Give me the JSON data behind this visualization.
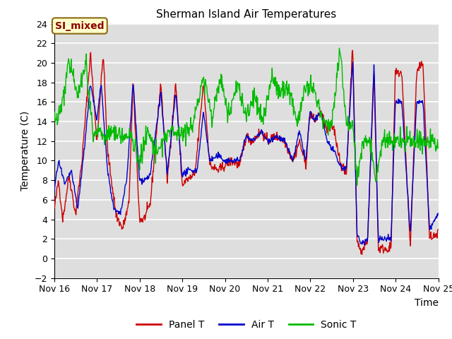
{
  "title": "Sherman Island Air Temperatures",
  "xlabel": "Time",
  "ylabel": "Temperature (C)",
  "ylim": [
    -2,
    24
  ],
  "yticks": [
    -2,
    0,
    2,
    4,
    6,
    8,
    10,
    12,
    14,
    16,
    18,
    20,
    22,
    24
  ],
  "colors": {
    "panel_t": "#cc0000",
    "air_t": "#0000cc",
    "sonic_t": "#00bb00",
    "plot_bg": "#dedede",
    "grid": "#ffffff"
  },
  "legend_label_color": "#8b0000",
  "legend_label_bg": "#ffffcc",
  "series_labels": [
    "Panel T",
    "Air T",
    "Sonic T"
  ],
  "n_points": 864,
  "annotation": "SI_mixed"
}
